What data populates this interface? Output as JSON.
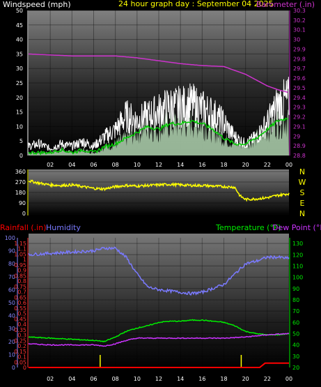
{
  "header": {
    "left_label": "Windspeed (mph)",
    "title": "24 hour graph day : September 04 2025",
    "right_label": "Barometer (.in)"
  },
  "colors": {
    "background": "#000000",
    "windspeed": "#ffffff",
    "wind_avg": "#00cc00",
    "wind_fill": "#c8f0c8",
    "barometer": "#cc33cc",
    "direction": "#ffff00",
    "rainfall": "#ff0000",
    "humidity": "#7a7aff",
    "temperature": "#00ee00",
    "dew_point": "#cc33ff",
    "time_axis": "#ffff00",
    "rain_rate_ticks": "#ff3333",
    "humidity_ticks": "#8888ff",
    "temp_ticks": "#00ee00"
  },
  "chart_data": [
    {
      "type": "line",
      "name": "wind-barometer",
      "x_ticks": [
        "02",
        "04",
        "06",
        "08",
        "10",
        "12",
        "14",
        "16",
        "18",
        "20",
        "22",
        "00"
      ],
      "y_left": {
        "label": "Windspeed (mph)",
        "range": [
          0,
          50
        ],
        "ticks": [
          0,
          5,
          10,
          15,
          20,
          25,
          30,
          35,
          40,
          45,
          50
        ]
      },
      "y_right": {
        "label": "Barometer (.in)",
        "range": [
          28.8,
          30.3
        ],
        "ticks": [
          "28.8",
          "28.9",
          "29",
          "29.1",
          "29.2",
          "29.3",
          "29.4",
          "29.5",
          "29.6",
          "29.7",
          "29.8",
          "29.9",
          "30",
          "30.1",
          "30.2",
          "30.3"
        ]
      },
      "grid": true,
      "series": [
        {
          "name": "Barometer (.in)",
          "axis": "right",
          "x_hours": [
            0,
            2,
            4,
            6,
            8,
            10,
            12,
            14,
            16,
            18,
            20,
            21,
            22,
            23,
            24
          ],
          "values": [
            29.85,
            29.84,
            29.83,
            29.83,
            29.83,
            29.81,
            29.78,
            29.75,
            29.73,
            29.72,
            29.64,
            29.58,
            29.52,
            29.48,
            29.45
          ]
        },
        {
          "name": "Windspeed gust (mph)",
          "axis": "left",
          "x_hours": [
            0,
            1,
            2,
            3,
            4,
            5,
            6,
            7,
            8,
            9,
            10,
            11,
            12,
            13,
            14,
            15,
            16,
            17,
            18,
            19,
            20,
            21,
            22,
            23,
            24
          ],
          "values": [
            4,
            5,
            3,
            5,
            4,
            6,
            4,
            8,
            11,
            17,
            15,
            17,
            19,
            21,
            21,
            22,
            20,
            18,
            14,
            8,
            5,
            8,
            14,
            22,
            24
          ]
        },
        {
          "name": "Windspeed average (mph)",
          "axis": "left",
          "x_hours": [
            0,
            1,
            2,
            3,
            4,
            5,
            6,
            7,
            8,
            9,
            10,
            11,
            12,
            13,
            14,
            15,
            16,
            17,
            18,
            19,
            20,
            21,
            22,
            23,
            24
          ],
          "values": [
            1,
            1,
            1,
            2,
            1,
            2,
            1,
            3,
            4,
            6,
            8,
            10,
            9,
            11,
            11,
            12,
            11,
            9,
            6,
            4,
            4,
            6,
            9,
            12,
            13
          ]
        }
      ]
    },
    {
      "type": "line",
      "name": "wind-direction",
      "y_ticks": [
        0,
        90,
        180,
        270,
        360
      ],
      "y_range": [
        0,
        360
      ],
      "right_labels": [
        "N",
        "W",
        "S",
        "E",
        "N"
      ],
      "series": [
        {
          "name": "Wind direction (deg)",
          "x_hours": [
            0,
            1,
            2,
            3,
            4,
            5,
            6,
            7,
            8,
            9,
            10,
            11,
            12,
            13,
            14,
            15,
            16,
            17,
            18,
            19,
            19.5,
            20,
            21,
            22,
            23,
            24
          ],
          "values": [
            280,
            260,
            245,
            240,
            245,
            230,
            215,
            210,
            230,
            240,
            235,
            240,
            245,
            250,
            245,
            240,
            240,
            235,
            230,
            225,
            150,
            120,
            125,
            135,
            155,
            170
          ]
        }
      ]
    },
    {
      "type": "line",
      "name": "rain-humidity-temperature",
      "legend_left": [
        "Rainfall (.in)",
        "Humidity"
      ],
      "legend_right": [
        "Temperature (°F)",
        "Dew Point (°F)"
      ],
      "y_humidity": {
        "range": [
          0,
          100
        ],
        "ticks": [
          0,
          10,
          20,
          30,
          40,
          50,
          60,
          70,
          80,
          90,
          100
        ]
      },
      "y_rain": {
        "range": [
          0,
          1.2
        ],
        "ticks": [
          "0",
          "0.05",
          "0.1",
          "0.15",
          "0.2",
          "0.25",
          "0.3",
          "0.35",
          "0.4",
          "0.45",
          "0.5",
          "0.55",
          "0.6",
          "0.65",
          "0.7",
          "0.75",
          "0.8",
          "0.85",
          "0.9",
          "0.95",
          "1",
          "1.05",
          "1.1",
          "1.15"
        ]
      },
      "y_temp": {
        "range": [
          20,
          135
        ],
        "ticks": [
          20,
          30,
          40,
          50,
          60,
          70,
          80,
          90,
          100,
          110,
          120,
          130
        ]
      },
      "series": [
        {
          "name": "Humidity",
          "axis": "humidity",
          "x_hours": [
            0,
            2,
            4,
            6,
            7,
            8,
            9,
            10,
            11,
            12,
            13,
            14,
            15,
            16,
            17,
            18,
            19,
            20,
            21,
            22,
            23,
            24
          ],
          "values": [
            87,
            88,
            89,
            90,
            92,
            92,
            85,
            72,
            62,
            60,
            59,
            58,
            57,
            58,
            61,
            64,
            72,
            80,
            82,
            85,
            85,
            84
          ]
        },
        {
          "name": "Temperature",
          "axis": "temp",
          "x_hours": [
            0,
            2,
            4,
            6,
            7,
            8,
            9,
            10,
            11,
            12,
            13,
            14,
            15,
            16,
            17,
            18,
            19,
            20,
            21,
            22,
            23,
            24
          ],
          "values": [
            47,
            46,
            45,
            44,
            43,
            47,
            52,
            55,
            57,
            60,
            61,
            61,
            62,
            62,
            61,
            60,
            57,
            52,
            50,
            49,
            49,
            50
          ]
        },
        {
          "name": "Dew Point",
          "axis": "temp",
          "x_hours": [
            0,
            2,
            4,
            6,
            7,
            8,
            9,
            10,
            12,
            14,
            16,
            18,
            20,
            22,
            24
          ],
          "values": [
            41,
            40,
            40,
            40,
            39,
            41,
            44,
            46,
            46,
            46,
            46,
            46,
            47,
            49,
            50
          ]
        },
        {
          "name": "Rainfall",
          "axis": "rain",
          "x_hours": [
            0,
            21.3,
            21.8,
            22,
            24
          ],
          "values": [
            0,
            0,
            0.04,
            0.04,
            0.04
          ]
        }
      ]
    }
  ]
}
